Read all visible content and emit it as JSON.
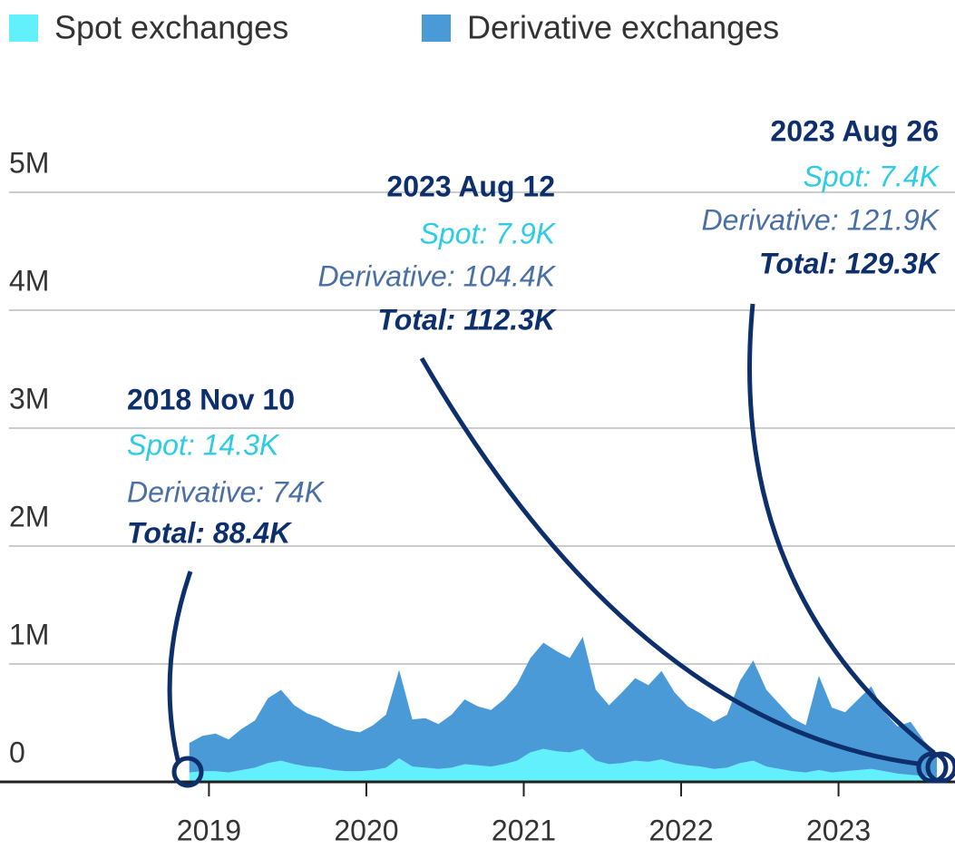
{
  "chart_data": {
    "type": "area",
    "x": [
      2018.875,
      2018.958,
      2019.042,
      2019.125,
      2019.208,
      2019.292,
      2019.375,
      2019.458,
      2019.542,
      2019.625,
      2019.708,
      2019.792,
      2019.875,
      2019.958,
      2020.042,
      2020.125,
      2020.208,
      2020.292,
      2020.375,
      2020.458,
      2020.542,
      2020.625,
      2020.708,
      2020.792,
      2020.875,
      2020.958,
      2021.042,
      2021.125,
      2021.208,
      2021.292,
      2021.375,
      2021.458,
      2021.542,
      2021.625,
      2021.708,
      2021.792,
      2021.875,
      2021.958,
      2022.042,
      2022.125,
      2022.208,
      2022.292,
      2022.375,
      2022.458,
      2022.542,
      2022.625,
      2022.708,
      2022.792,
      2022.875,
      2022.958,
      2023.042,
      2023.125,
      2023.208,
      2023.292,
      2023.375,
      2023.458,
      2023.542,
      2023.625
    ],
    "series": [
      {
        "name": "Spot exchanges",
        "color": "#62f0fc",
        "values": [
          80000,
          90000,
          90000,
          80000,
          100000,
          120000,
          160000,
          180000,
          150000,
          130000,
          120000,
          100000,
          90000,
          90000,
          100000,
          120000,
          200000,
          130000,
          120000,
          110000,
          120000,
          150000,
          140000,
          130000,
          150000,
          180000,
          250000,
          280000,
          260000,
          250000,
          280000,
          180000,
          150000,
          160000,
          180000,
          170000,
          190000,
          160000,
          140000,
          130000,
          110000,
          120000,
          160000,
          180000,
          130000,
          110000,
          90000,
          80000,
          100000,
          80000,
          90000,
          100000,
          110000,
          90000,
          70000,
          60000,
          50000,
          40000
        ]
      },
      {
        "name": "Derivative exchanges",
        "color": "#4a9ad8",
        "values": [
          250000,
          300000,
          320000,
          280000,
          350000,
          400000,
          550000,
          600000,
          500000,
          450000,
          420000,
          380000,
          350000,
          330000,
          380000,
          450000,
          750000,
          400000,
          420000,
          380000,
          450000,
          550000,
          500000,
          480000,
          550000,
          650000,
          800000,
          900000,
          850000,
          800000,
          950000,
          600000,
          500000,
          600000,
          700000,
          650000,
          750000,
          600000,
          500000,
          450000,
          400000,
          450000,
          700000,
          850000,
          650000,
          550000,
          450000,
          400000,
          800000,
          550000,
          500000,
          600000,
          700000,
          500000,
          400000,
          450000,
          300000,
          200000
        ]
      }
    ],
    "stacked": true,
    "xlim": [
      2017.73,
      2023.74
    ],
    "xticks": [
      2019,
      2020,
      2021,
      2022,
      2023
    ],
    "ylim": [
      0,
      6000000
    ],
    "yticks": [
      0,
      {
        "value": 1000000,
        "label": "1M"
      },
      {
        "value": 2000000,
        "label": "2M"
      },
      {
        "value": 3000000,
        "label": "3M"
      },
      {
        "value": 4000000,
        "label": "4M"
      },
      {
        "value": 5000000,
        "label": "5M"
      }
    ],
    "grid": true,
    "legend": "top-left",
    "annotations": [
      {
        "date": "2018 Nov 10",
        "spot": "Spot: 14.3K",
        "derivative": "Derivative: 74K",
        "total": "Total: 88.4K"
      },
      {
        "date": "2023 Aug 12",
        "spot": "Spot: 7.9K",
        "derivative": "Derivative: 104.4K",
        "total": "Total: 112.3K"
      },
      {
        "date": "2023 Aug 26",
        "spot": "Spot: 7.4K",
        "derivative": "Derivative: 121.9K",
        "total": "Total: 129.3K"
      }
    ]
  }
}
